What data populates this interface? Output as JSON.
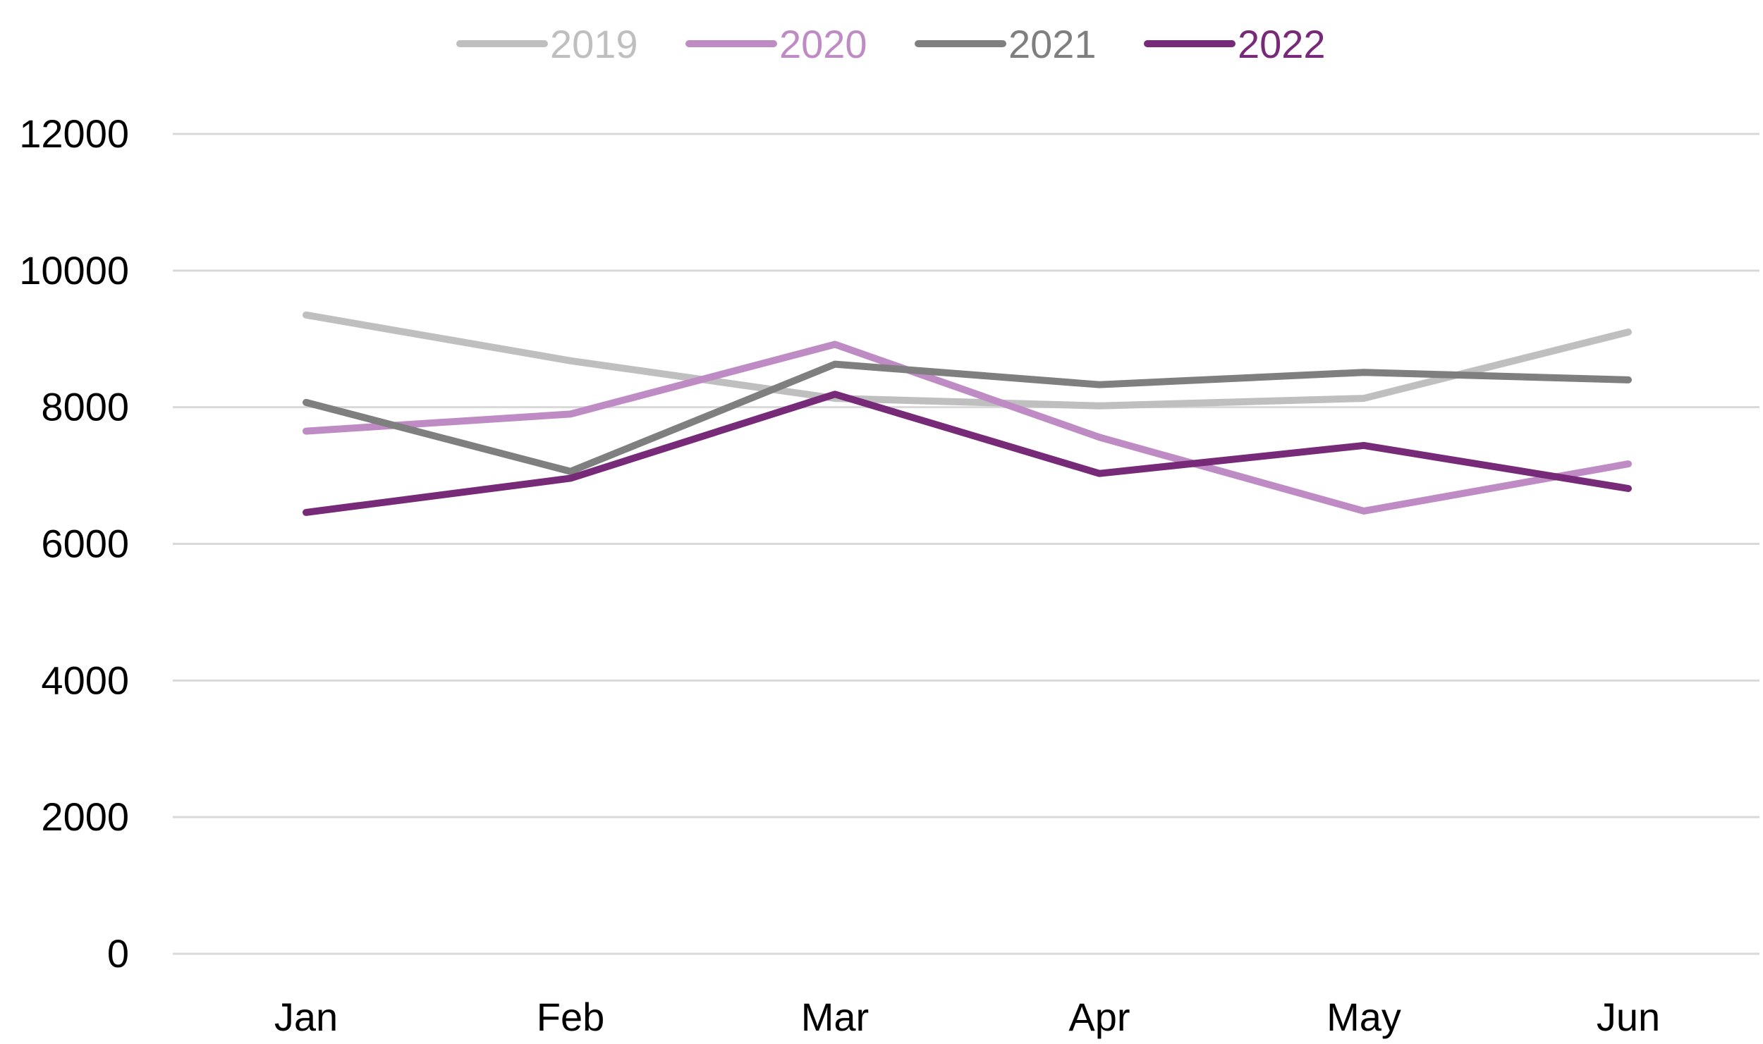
{
  "chart_data": {
    "type": "line",
    "title": "",
    "xlabel": "",
    "ylabel": "",
    "categories": [
      "Jan",
      "Feb",
      "Mar",
      "Apr",
      "May",
      "Jun"
    ],
    "ylim": [
      0,
      12000
    ],
    "yticks": [
      "0",
      "2000",
      "4000",
      "6000",
      "8000",
      "10000",
      "12000"
    ],
    "grid": true,
    "legend_position": "top",
    "series": [
      {
        "name": "2019",
        "color": "#BFBFBF",
        "values": [
          9350,
          8680,
          8130,
          8020,
          8130,
          9100
        ]
      },
      {
        "name": "2020",
        "color": "#BF8BC4",
        "values": [
          7650,
          7900,
          8920,
          7560,
          6480,
          7170
        ]
      },
      {
        "name": "2021",
        "color": "#7F7F7F",
        "values": [
          8070,
          7060,
          8630,
          8330,
          8510,
          8400
        ]
      },
      {
        "name": "2022",
        "color": "#772A78",
        "values": [
          6460,
          6960,
          8190,
          7030,
          7440,
          6810
        ]
      }
    ]
  }
}
